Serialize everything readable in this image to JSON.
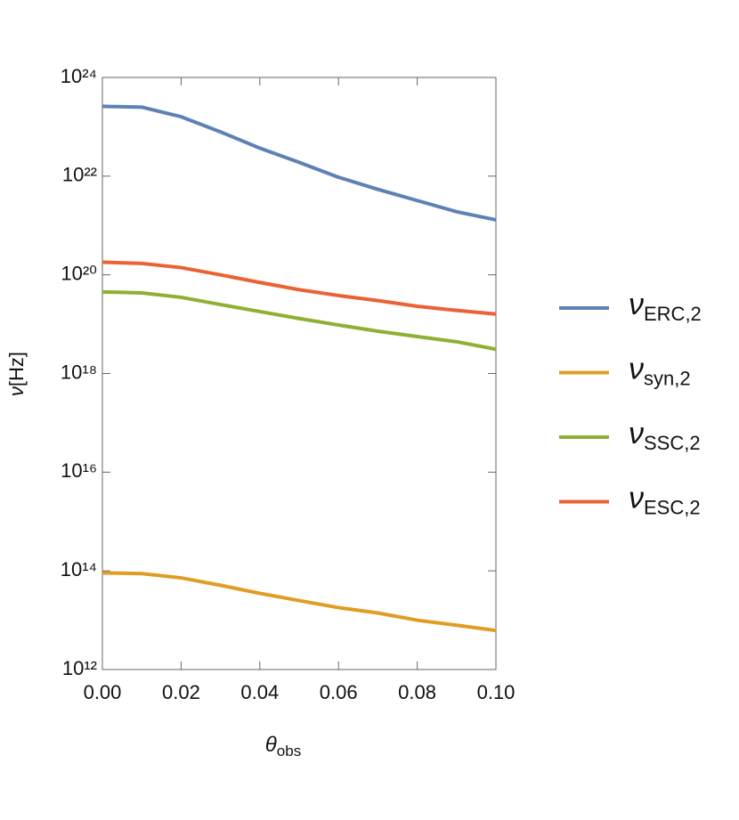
{
  "chart_data": {
    "type": "line",
    "xlabel": "θ",
    "xlabel_subscript": "obs",
    "ylabel": "ν",
    "ylabel_unit": "[Hz]",
    "log_y": true,
    "x": [
      0,
      0.01,
      0.02,
      0.03,
      0.04,
      0.05,
      0.06,
      0.07,
      0.08,
      0.09,
      0.1
    ],
    "series": [
      {
        "name": "ν",
        "subscript": "ERC,2",
        "color": "#5e81b5",
        "values": [
          2.6e+23,
          2.5e+23,
          1.6e+23,
          7.9e+22,
          3.7e+22,
          1.9e+22,
          9.5e+21,
          5.4e+21,
          3.2e+21,
          1.9e+21,
          1.3e+21
        ]
      },
      {
        "name": "ν",
        "subscript": "syn,2",
        "color": "#e19c24",
        "values": [
          91000000000000.0,
          88000000000000.0,
          72000000000000.0,
          51000000000000.0,
          35000000000000.0,
          25000000000000.0,
          18000000000000.0,
          14000000000000.0,
          10000000000000.0,
          7900000000000.0,
          6200000000000.0
        ]
      },
      {
        "name": "ν",
        "subscript": "SSC,2",
        "color": "#8fb032",
        "values": [
          4.5e+19,
          4.3e+19,
          3.5e+19,
          2.5e+19,
          1.8e+19,
          1.3e+19,
          9.6e+18,
          7.2e+18,
          5.6e+18,
          4.4e+18,
          3.1e+18
        ]
      },
      {
        "name": "ν",
        "subscript": "ESC,2",
        "color": "#eb6235",
        "values": [
          1.8e+20,
          1.7e+20,
          1.4e+20,
          1e+20,
          7e+19,
          5e+19,
          3.8e+19,
          3e+19,
          2.3e+19,
          1.9e+19,
          1.6e+19
        ]
      }
    ],
    "xlim": [
      0,
      0.1
    ],
    "xticks": [
      {
        "value": 0,
        "label": "0.00"
      },
      0.02,
      0.04,
      0.06,
      0.08,
      {
        "value": 0.1,
        "label": "0.10"
      }
    ],
    "ylim": [
      1000000000000.0,
      1e+24
    ],
    "yticks": [
      {
        "value": 1000000000000.0,
        "label": "10¹²"
      },
      {
        "value": 100000000000000.0,
        "label": "10¹⁴"
      },
      {
        "value": 1e+16,
        "label": "10¹⁶"
      },
      {
        "value": 1e+18,
        "label": "10¹⁸"
      },
      {
        "value": 1e+20,
        "label": "10²⁰"
      },
      {
        "value": 1e+22,
        "label": "10²²"
      },
      {
        "value": 1e+24,
        "label": "10²⁴"
      }
    ],
    "legend": "right"
  }
}
